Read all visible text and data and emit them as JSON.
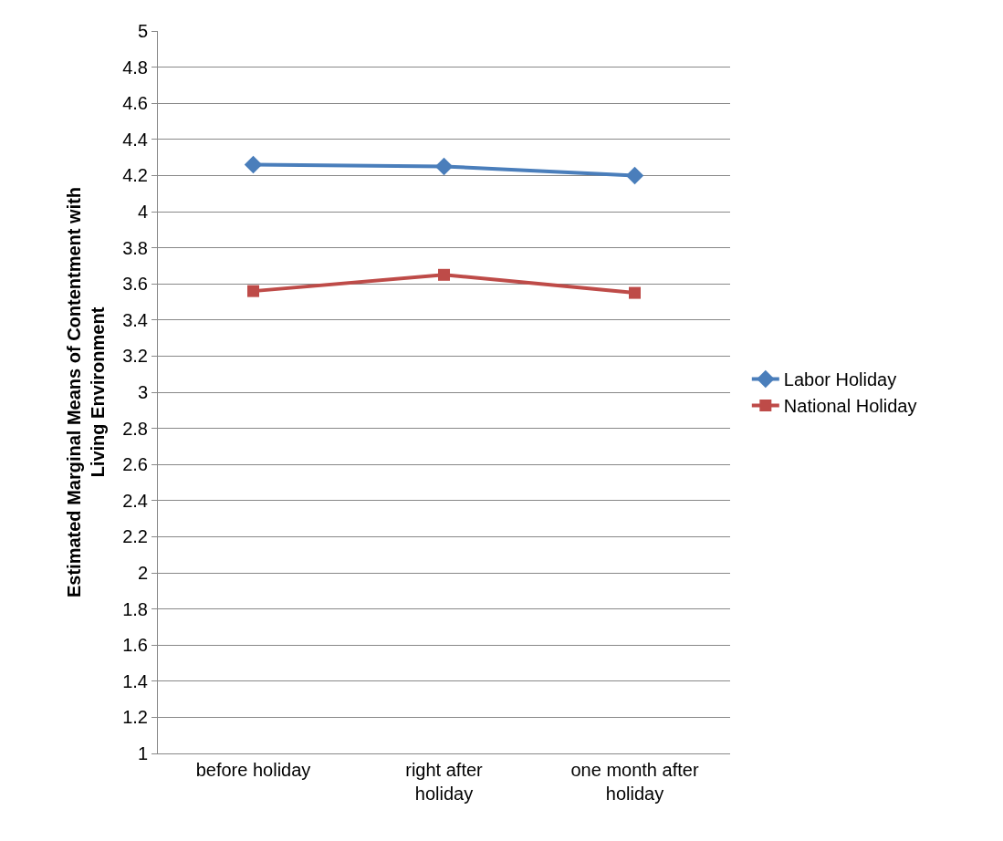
{
  "chart_data": {
    "type": "line",
    "ylabel": "Estimated Marginal Means of Contentment with Living Environment",
    "categories": [
      "before holiday",
      "right after holiday",
      "one month after holiday"
    ],
    "series": [
      {
        "name": "Labor Holiday",
        "color": "#4a7ebb",
        "values": [
          4.26,
          4.25,
          4.2
        ],
        "marker": "diamond"
      },
      {
        "name": "National Holiday",
        "color": "#be4b48",
        "values": [
          3.56,
          3.65,
          3.55
        ],
        "marker": "square"
      }
    ],
    "ylim": [
      1,
      5
    ],
    "yticks": [
      1,
      1.2,
      1.4,
      1.6,
      1.8,
      2,
      2.2,
      2.4,
      2.6,
      2.8,
      3,
      3.2,
      3.4,
      3.6,
      3.8,
      4,
      4.2,
      4.4,
      4.6,
      4.8,
      5
    ],
    "grid": "y",
    "legend": "right",
    "line_style": "solid"
  }
}
